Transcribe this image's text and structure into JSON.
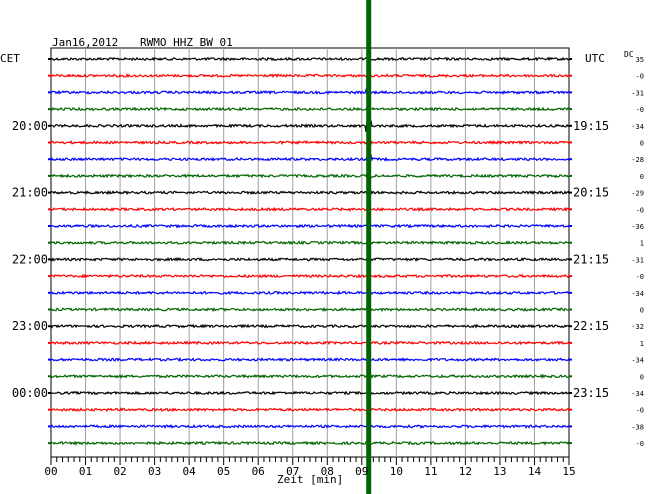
{
  "header": {
    "date": "Jan16,2012",
    "station": "RWMO HHZ BW 01",
    "left_tz": "CET",
    "right_tz": "UTC",
    "dc_label": "DC"
  },
  "chart_data": {
    "type": "line",
    "title": "Jan16,2012   RWMO HHZ BW 01",
    "xlabel": "Zeit [min]",
    "xlim": [
      0,
      15
    ],
    "x_ticks": [
      "00",
      "01",
      "02",
      "03",
      "04",
      "05",
      "06",
      "07",
      "08",
      "09",
      "10",
      "11",
      "12",
      "13",
      "14",
      "15"
    ],
    "trace_count": 24,
    "trace_colors": [
      "#000000",
      "#ff0000",
      "#0000ff",
      "#006400"
    ],
    "left_hour_labels": [
      {
        "trace": 4,
        "text": "20:00"
      },
      {
        "trace": 8,
        "text": "21:00"
      },
      {
        "trace": 12,
        "text": "22:00"
      },
      {
        "trace": 16,
        "text": "23:00"
      },
      {
        "trace": 20,
        "text": "00:00"
      }
    ],
    "right_hour_labels": [
      {
        "trace": 4,
        "text": "19:15"
      },
      {
        "trace": 8,
        "text": "20:15"
      },
      {
        "trace": 12,
        "text": "21:15"
      },
      {
        "trace": 16,
        "text": "22:15"
      },
      {
        "trace": 20,
        "text": "23:15"
      }
    ],
    "dc_offsets": [
      "35",
      "-0",
      "-31",
      "-0",
      "-34",
      "0",
      "-28",
      "0",
      "-29",
      "-0",
      "-36",
      "1",
      "-31",
      "-0",
      "-34",
      "0",
      "-32",
      "1",
      "-34",
      "0",
      "-34",
      "-0",
      "-38",
      "-0"
    ],
    "event_marker": {
      "minute": 9.2,
      "color": "#006400"
    }
  }
}
